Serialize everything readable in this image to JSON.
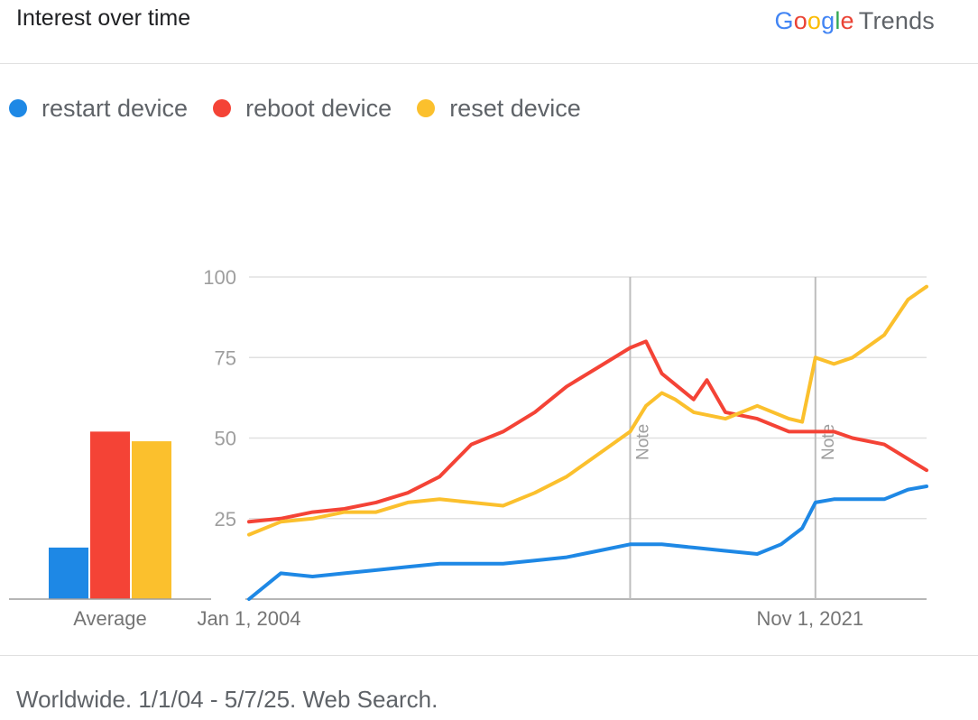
{
  "header": {
    "title": "Interest over time",
    "brand": "Google",
    "brand_suffix": "Trends"
  },
  "footer": {
    "text": "Worldwide. 1/1/04 - 5/7/25. Web Search."
  },
  "chart_data": {
    "type": "line",
    "x_tick_labels": [
      "Jan 1, 2004",
      "Nov 1, 2021"
    ],
    "y_ticks": [
      25,
      50,
      75,
      100
    ],
    "ylim": [
      0,
      100
    ],
    "x_range": [
      "2004-01",
      "2025-05"
    ],
    "grid": true,
    "legend_position": "top-left",
    "notes": [
      {
        "label": "Note",
        "date": "2016-01"
      },
      {
        "label": "Note",
        "date": "2021-11"
      }
    ],
    "average": {
      "label": "Average",
      "values": [
        16,
        52,
        49
      ]
    },
    "series": [
      {
        "name": "restart device",
        "color": "#1E88E5",
        "x": [
          "2004-01",
          "2005-01",
          "2006-01",
          "2007-01",
          "2008-01",
          "2009-01",
          "2010-01",
          "2011-01",
          "2012-01",
          "2013-01",
          "2014-01",
          "2015-01",
          "2016-01",
          "2017-01",
          "2018-01",
          "2019-01",
          "2020-01",
          "2020-10",
          "2021-06",
          "2021-11",
          "2022-06",
          "2023-01",
          "2024-01",
          "2024-10",
          "2025-05"
        ],
        "y": [
          0,
          8,
          7,
          8,
          9,
          10,
          11,
          11,
          11,
          12,
          13,
          15,
          17,
          17,
          16,
          15,
          14,
          17,
          22,
          30,
          31,
          31,
          31,
          34,
          35
        ]
      },
      {
        "name": "reboot device",
        "color": "#F44336",
        "x": [
          "2004-01",
          "2005-01",
          "2006-01",
          "2007-01",
          "2008-01",
          "2009-01",
          "2010-01",
          "2011-01",
          "2012-01",
          "2013-01",
          "2014-01",
          "2015-01",
          "2016-01",
          "2016-07",
          "2017-01",
          "2018-01",
          "2018-06",
          "2019-01",
          "2020-01",
          "2021-01",
          "2021-11",
          "2022-06",
          "2023-01",
          "2024-01",
          "2025-05"
        ],
        "y": [
          24,
          25,
          27,
          28,
          30,
          33,
          38,
          48,
          52,
          58,
          66,
          72,
          78,
          80,
          70,
          62,
          68,
          58,
          56,
          52,
          52,
          52,
          50,
          48,
          40
        ]
      },
      {
        "name": "reset device",
        "color": "#FBC02D",
        "x": [
          "2004-01",
          "2005-01",
          "2006-01",
          "2007-01",
          "2008-01",
          "2009-01",
          "2010-01",
          "2011-01",
          "2012-01",
          "2013-01",
          "2014-01",
          "2015-01",
          "2016-01",
          "2016-07",
          "2017-01",
          "2017-06",
          "2018-01",
          "2019-01",
          "2020-01",
          "2021-01",
          "2021-06",
          "2021-11",
          "2022-06",
          "2023-01",
          "2024-01",
          "2024-10",
          "2025-05"
        ],
        "y": [
          20,
          24,
          25,
          27,
          27,
          30,
          31,
          30,
          29,
          33,
          38,
          45,
          52,
          60,
          64,
          62,
          58,
          56,
          60,
          56,
          55,
          75,
          73,
          75,
          82,
          93,
          97
        ]
      }
    ]
  }
}
